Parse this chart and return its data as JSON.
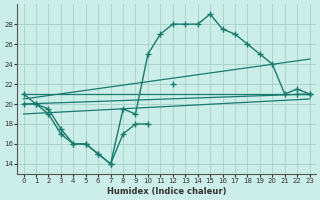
{
  "xlabel": "Humidex (Indice chaleur)",
  "bg_color": "#cceee8",
  "line_color": "#1a7a6e",
  "grid_color": "#aad4ce",
  "ylim": [
    13,
    30
  ],
  "xlim": [
    -0.5,
    23.5
  ],
  "yticks": [
    14,
    16,
    18,
    20,
    22,
    24,
    26,
    28
  ],
  "xticks": [
    0,
    1,
    2,
    3,
    4,
    5,
    6,
    7,
    8,
    9,
    10,
    11,
    12,
    13,
    14,
    15,
    16,
    17,
    18,
    19,
    20,
    21,
    22,
    23
  ],
  "curve1_x": [
    0,
    1,
    2,
    3,
    4,
    5,
    6,
    7,
    8,
    9,
    10,
    11,
    12,
    13,
    14,
    15,
    16,
    17,
    18,
    19,
    20,
    21,
    22,
    23
  ],
  "curve1_y": [
    21,
    20,
    19,
    17,
    16,
    16,
    15,
    14,
    19.5,
    19,
    25,
    27,
    28,
    28,
    28,
    29,
    27.5,
    27,
    26,
    25,
    24,
    21,
    21.5,
    21
  ],
  "curve2_x": [
    0,
    1,
    2,
    3,
    4,
    5,
    6,
    7,
    8,
    9,
    10,
    11,
    12,
    13,
    14,
    15,
    16,
    17,
    18,
    19,
    20,
    21,
    22,
    23
  ],
  "curve2_y": [
    20,
    20,
    19.5,
    17.5,
    16,
    16,
    15,
    14,
    17,
    18,
    18,
    null,
    22,
    null,
    null,
    null,
    null,
    null,
    null,
    null,
    null,
    null,
    21,
    21
  ],
  "trend1_x": [
    0,
    23
  ],
  "trend1_y": [
    21.0,
    21.0
  ],
  "trend2_x": [
    0,
    23
  ],
  "trend2_y": [
    20.5,
    24.5
  ],
  "trend3_x": [
    0,
    23
  ],
  "trend3_y": [
    20.0,
    21.0
  ],
  "trend4_x": [
    0,
    23
  ],
  "trend4_y": [
    19.0,
    20.5
  ]
}
